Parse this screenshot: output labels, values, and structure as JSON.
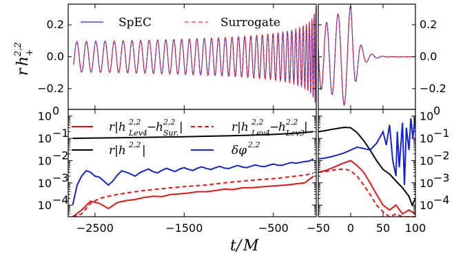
{
  "chart_data": [
    {
      "panel": "top-left",
      "type": "line",
      "ylabel": "r h_+^{2,2}",
      "xlim": [
        -2800,
        -20
      ],
      "ylim": [
        -0.33,
        0.33
      ],
      "yticks": [
        "0.2",
        "0.0",
        "−0.2"
      ],
      "ytick_values": [
        0.2,
        0.0,
        -0.2
      ],
      "legend": {
        "placement": "top",
        "entries": [
          "SpEC",
          "Surrogate"
        ]
      },
      "series": [
        {
          "name": "SpEC",
          "color": "#2222ee",
          "style": "solid"
        },
        {
          "name": "Surrogate",
          "color": "#ff3333",
          "style": "dashed"
        }
      ],
      "grid": false
    },
    {
      "panel": "top-right",
      "type": "line",
      "xlim": [
        -50,
        100
      ],
      "ylim": [
        -0.33,
        0.33
      ],
      "yticks": [
        "0.2",
        "0.0",
        "−0.2"
      ],
      "ytick_values": [
        0.2,
        0.0,
        -0.2
      ],
      "ytick_side": "right",
      "grid": false
    },
    {
      "panel": "bottom-left",
      "type": "line",
      "yscale": "log",
      "xlim": [
        -2800,
        -20
      ],
      "ylim": [
        3e-05,
        2
      ],
      "xticks": [
        "−2500",
        "−1500",
        "−500"
      ],
      "xtick_values": [
        -2500,
        -1500,
        -500
      ],
      "yticks_exponents": [
        0,
        -1,
        -2,
        -3,
        -4
      ],
      "legend": {
        "placement": "top",
        "entries": [
          {
            "label": "r|h^{2,2}_{Lev4} − h^{2,2}_{Sur.}|",
            "color": "#ee1111",
            "style": "solid"
          },
          {
            "label": "r|h^{2,2}_{Lev4} − h^{2,2}_{Lev3}|",
            "color": "#ee1111",
            "style": "dashed"
          },
          {
            "label": "r|h^{2,2}|",
            "color": "#000000",
            "style": "solid"
          },
          {
            "label": "δφ^{2,2}",
            "color": "#1122dd",
            "style": "solid"
          }
        ]
      },
      "series": [
        {
          "name": "r|h^{2,2}_{Lev4} − h^{2,2}_{Sur.}|",
          "x": [
            -2750,
            -2650,
            -2550,
            -2450,
            -2350,
            -2250,
            -2150,
            -2050,
            -1950,
            -1850,
            -1750,
            -1650,
            -1550,
            -1450,
            -1350,
            -1250,
            -1150,
            -1050,
            -950,
            -850,
            -750,
            -650,
            -550,
            -450,
            -350,
            -250,
            -150,
            -50
          ],
          "y": [
            3e-05,
            6e-05,
            0.00015,
            0.00012,
            7e-05,
            0.00013,
            0.00016,
            0.00018,
            0.00022,
            0.00025,
            0.00024,
            0.0003,
            0.00032,
            0.00035,
            0.0004,
            0.0004,
            0.00045,
            0.00052,
            0.0005,
            0.0006,
            0.0006,
            0.00065,
            0.0007,
            0.00075,
            0.0008,
            0.0009,
            0.001,
            0.002
          ]
        },
        {
          "name": "r|h^{2,2}_{Lev4} − h^{2,2}_{Lev3}|",
          "x": [
            -2750,
            -2650,
            -2550,
            -2450,
            -2350,
            -2250,
            -2150,
            -2050,
            -1950,
            -1850,
            -1750,
            -1650,
            -1550,
            -1450,
            -1350,
            -1250,
            -1150,
            -1050,
            -950,
            -850,
            -750,
            -650,
            -550,
            -450,
            -350,
            -250,
            -150,
            -50
          ],
          "y": [
            3e-05,
            4e-05,
            0.00012,
            0.0002,
            0.00025,
            0.0003,
            0.00035,
            0.0004,
            0.00045,
            0.0005,
            0.00055,
            0.0006,
            0.00065,
            0.0007,
            0.00075,
            0.0008,
            0.0009,
            0.001,
            0.0011,
            0.0012,
            0.0013,
            0.0014,
            0.0015,
            0.0016,
            0.0018,
            0.002,
            0.0022,
            0.0028
          ]
        },
        {
          "name": "r|h^{2,2}|",
          "x": [
            -2750,
            -2500,
            -2250,
            -2000,
            -1750,
            -1500,
            -1250,
            -1000,
            -750,
            -500,
            -250,
            -50
          ],
          "y": [
            0.1,
            0.103,
            0.106,
            0.11,
            0.114,
            0.118,
            0.124,
            0.13,
            0.138,
            0.15,
            0.17,
            0.2
          ]
        },
        {
          "name": "δφ^{2,2}",
          "x": [
            -2750,
            -2700,
            -2650,
            -2600,
            -2550,
            -2500,
            -2450,
            -2400,
            -2350,
            -2300,
            -2250,
            -2200,
            -2150,
            -2100,
            -2050,
            -2000,
            -1950,
            -1900,
            -1850,
            -1800,
            -1750,
            -1700,
            -1650,
            -1600,
            -1550,
            -1500,
            -1450,
            -1400,
            -1350,
            -1300,
            -1250,
            -1200,
            -1150,
            -1100,
            -1050,
            -1000,
            -950,
            -900,
            -850,
            -800,
            -750,
            -700,
            -650,
            -600,
            -550,
            -500,
            -450,
            -400,
            -350,
            -300,
            -250,
            -200,
            -150,
            -100,
            -50
          ],
          "y": [
            0.0001,
            0.0008,
            0.002,
            0.0035,
            0.003,
            0.002,
            0.0018,
            0.0012,
            0.0008,
            0.0012,
            0.0022,
            0.0035,
            0.003,
            0.0025,
            0.002,
            0.0028,
            0.0035,
            0.0042,
            0.0032,
            0.0028,
            0.0036,
            0.0045,
            0.0038,
            0.0032,
            0.0042,
            0.0048,
            0.004,
            0.0036,
            0.0046,
            0.0052,
            0.0044,
            0.004,
            0.0048,
            0.0055,
            0.0046,
            0.0044,
            0.0052,
            0.006,
            0.0052,
            0.0048,
            0.0056,
            0.0064,
            0.0056,
            0.0054,
            0.0062,
            0.007,
            0.0062,
            0.0062,
            0.0072,
            0.0082,
            0.0076,
            0.0082,
            0.009,
            0.0095,
            0.012
          ]
        }
      ],
      "grid": false
    },
    {
      "panel": "bottom-right",
      "type": "line",
      "yscale": "log",
      "xlim": [
        -50,
        100
      ],
      "ylim": [
        3e-05,
        2
      ],
      "xticks": [
        "−50",
        "0",
        "50",
        "100"
      ],
      "xtick_values": [
        -50,
        0,
        50,
        100
      ],
      "yticks_exponents": [
        0,
        -1,
        -2,
        -3,
        -4
      ],
      "ytick_side": "right",
      "series": [
        {
          "name": "r|h^{2,2}_{Lev4} − h^{2,2}_{Sur.}|",
          "x": [
            -50,
            -40,
            -30,
            -20,
            -10,
            0,
            10,
            20,
            30,
            40,
            50,
            60,
            70,
            80,
            90,
            100
          ],
          "y": [
            0.003,
            0.0035,
            0.0045,
            0.006,
            0.008,
            0.01,
            0.006,
            0.003,
            0.001,
            0.0003,
            0.0001,
            6e-05,
            0.0001,
            4e-05,
            6e-05,
            4e-05
          ]
        },
        {
          "name": "r|h^{2,2}_{Lev4} − h^{2,2}_{Lev3}|",
          "x": [
            -50,
            -40,
            -30,
            -20,
            -10,
            0,
            10,
            20,
            30,
            40,
            50,
            60,
            70,
            80,
            90,
            100
          ],
          "y": [
            0.003,
            0.0032,
            0.0036,
            0.004,
            0.0042,
            0.0035,
            0.002,
            0.0008,
            0.0003,
            0.0001,
            5e-05,
            3e-05,
            4e-05,
            3e-05,
            3e-05,
            3e-05
          ]
        },
        {
          "name": "r|h^{2,2}|",
          "x": [
            -50,
            -40,
            -30,
            -20,
            -10,
            0,
            10,
            20,
            30,
            40,
            50,
            60,
            70,
            80,
            90,
            95,
            100
          ],
          "y": [
            0.2,
            0.22,
            0.25,
            0.28,
            0.31,
            0.3,
            0.18,
            0.08,
            0.03,
            0.01,
            0.004,
            0.0025,
            0.0012,
            0.0006,
            0.00025,
            0.0001,
            0.0002
          ]
        },
        {
          "name": "δφ^{2,2}",
          "x": [
            -50,
            -40,
            -30,
            -20,
            -10,
            0,
            10,
            20,
            30,
            40,
            50,
            55,
            60,
            65,
            70,
            72,
            75,
            80,
            83,
            86,
            90,
            93,
            96,
            100
          ],
          "y": [
            0.012,
            0.013,
            0.015,
            0.018,
            0.022,
            0.03,
            0.04,
            0.035,
            0.03,
            0.06,
            0.2,
            0.05,
            0.4,
            0.01,
            0.002,
            0.2,
            0.005,
            0.5,
            0.0008,
            0.3,
            0.03,
            0.8,
            0.1,
            1.0
          ]
        }
      ],
      "grid": false
    }
  ],
  "xlabel": "t/M",
  "colors": {
    "spec": "#2222ee",
    "surrogate": "#ff3333",
    "red": "#ee1111",
    "black": "#000000",
    "blue": "#1122dd"
  }
}
